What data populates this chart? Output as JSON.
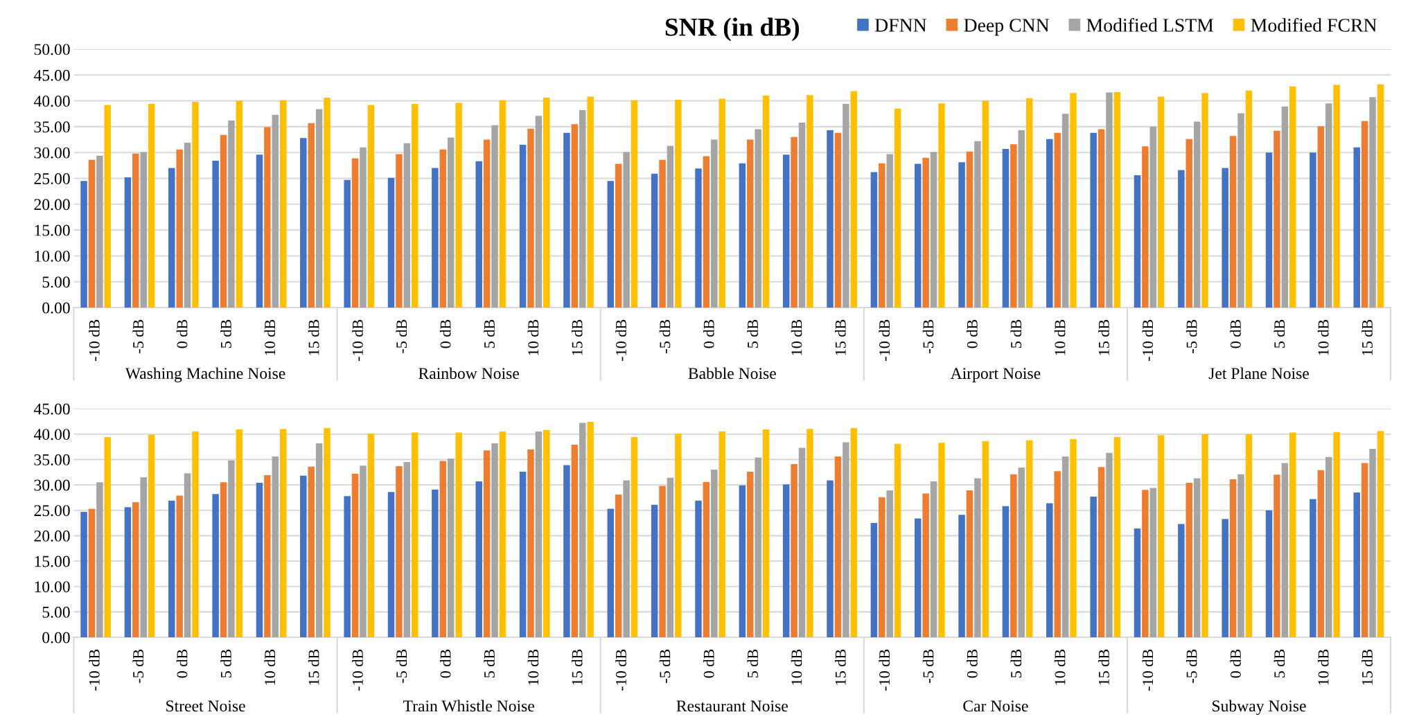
{
  "chart_data": [
    {
      "type": "bar",
      "title": "SNR (in dB)",
      "categories": [
        "-10 dB",
        "-5 dB",
        "0 dB",
        "5 dB",
        "10 dB",
        "15 dB",
        "-10 dB",
        "-5 dB",
        "0 dB",
        "5 dB",
        "10 dB",
        "15 dB",
        "-10 dB",
        "-5 dB",
        "0 dB",
        "5 dB",
        "10 dB",
        "15 dB",
        "-10 dB",
        "-5 dB",
        "0 dB",
        "5 dB",
        "10 dB",
        "15 dB",
        "-10 dB",
        "-5 dB",
        "0 dB",
        "5 dB",
        "10 dB",
        "15 dB"
      ],
      "annotations": [
        "Washing Machine Noise",
        "Rainbow Noise",
        "Babble Noise",
        "Airport Noise",
        "Jet Plane Noise"
      ],
      "series": [
        {
          "name": "DFNN",
          "color": "#4472c4",
          "values": [
            24.5,
            25.2,
            27.0,
            28.4,
            29.6,
            32.8,
            24.7,
            25.1,
            27.0,
            28.3,
            31.5,
            33.8,
            24.5,
            25.9,
            26.9,
            27.9,
            29.6,
            34.3,
            26.2,
            27.8,
            28.1,
            30.7,
            32.6,
            33.8,
            25.6,
            26.6,
            27.0,
            30.0,
            30.0,
            31.0
          ]
        },
        {
          "name": "Deep CNN",
          "color": "#ed7d31",
          "values": [
            28.6,
            29.8,
            30.6,
            33.4,
            34.9,
            35.7,
            28.9,
            29.7,
            30.6,
            32.5,
            34.6,
            35.5,
            27.8,
            28.6,
            29.3,
            32.5,
            33.0,
            33.8,
            27.9,
            29.0,
            30.2,
            31.6,
            33.8,
            34.5,
            31.2,
            32.6,
            33.2,
            34.2,
            35.1,
            36.1
          ]
        },
        {
          "name": "Modified LSTM",
          "color": "#a5a5a5",
          "values": [
            29.4,
            30.1,
            31.9,
            36.2,
            37.3,
            38.4,
            31.0,
            31.8,
            32.9,
            35.3,
            37.1,
            38.2,
            30.1,
            31.3,
            32.5,
            34.5,
            35.8,
            39.4,
            29.7,
            30.1,
            32.2,
            34.3,
            37.5,
            41.6,
            35.0,
            36.0,
            37.6,
            38.9,
            39.5,
            40.7
          ]
        },
        {
          "name": "Modified FCRN",
          "color": "#ffc000",
          "values": [
            39.2,
            39.4,
            39.8,
            40.0,
            40.1,
            40.6,
            39.2,
            39.4,
            39.6,
            40.1,
            40.6,
            40.8,
            40.1,
            40.2,
            40.4,
            41.0,
            41.1,
            41.9,
            38.5,
            39.5,
            40.0,
            40.5,
            41.5,
            41.7,
            40.8,
            41.5,
            42.0,
            42.8,
            43.1,
            43.2
          ]
        }
      ],
      "ylim": [
        0,
        50
      ],
      "yticks": [
        {
          "value": 0,
          "label": "0.00"
        },
        {
          "value": 5,
          "label": "5.00"
        },
        {
          "value": 10,
          "label": "10.00"
        },
        {
          "value": 15,
          "label": "15.00"
        },
        {
          "value": 20,
          "label": "20.00"
        },
        {
          "value": 25,
          "label": "25.00"
        },
        {
          "value": 30,
          "label": "30.00"
        },
        {
          "value": 35,
          "label": "35.00"
        },
        {
          "value": 40,
          "label": "40.00"
        },
        {
          "value": 45,
          "label": "45.00"
        },
        {
          "value": 50,
          "label": "50.00"
        }
      ],
      "grid": "y",
      "legend": "top right"
    },
    {
      "type": "bar",
      "categories": [
        "-10 dB",
        "-5 dB",
        "0 dB",
        "5 dB",
        "10 dB",
        "15 dB",
        "-10 dB",
        "-5 dB",
        "0 dB",
        "5 dB",
        "10 dB",
        "15 dB",
        "-10 dB",
        "-5 dB",
        "0 dB",
        "5 dB",
        "10 dB",
        "15 dB",
        "-10 dB",
        "-5 dB",
        "0 dB",
        "5 dB",
        "10 dB",
        "15 dB",
        "-10 dB",
        "-5 dB",
        "0 dB",
        "5 dB",
        "10 dB",
        "15 dB"
      ],
      "annotations": [
        "Street Noise",
        "Train Whistle Noise",
        "Restaurant Noise",
        "Car Noise",
        "Subway Noise"
      ],
      "series": [
        {
          "color": "#4472c4",
          "values": [
            24.7,
            25.6,
            26.9,
            28.2,
            30.4,
            31.8,
            27.8,
            28.6,
            29.1,
            30.7,
            32.6,
            33.9,
            25.3,
            26.1,
            26.9,
            29.9,
            30.1,
            30.9,
            22.5,
            23.4,
            24.1,
            25.8,
            26.4,
            27.7,
            21.4,
            22.3,
            23.3,
            25.0,
            27.2,
            28.5
          ]
        },
        {
          "color": "#ed7d31",
          "values": [
            25.3,
            26.6,
            27.9,
            30.5,
            31.9,
            33.6,
            32.2,
            33.7,
            34.7,
            36.8,
            37.0,
            37.9,
            28.1,
            29.8,
            30.6,
            32.6,
            34.1,
            35.6,
            27.6,
            28.3,
            28.9,
            32.1,
            32.7,
            33.5,
            29.0,
            30.4,
            31.1,
            32.0,
            32.9,
            34.3
          ]
        },
        {
          "color": "#a5a5a5",
          "values": [
            30.5,
            31.5,
            32.3,
            34.8,
            35.6,
            38.2,
            33.8,
            34.5,
            35.2,
            38.2,
            40.5,
            42.2,
            30.9,
            31.4,
            33.0,
            35.4,
            37.3,
            38.4,
            28.9,
            30.7,
            31.3,
            33.4,
            35.6,
            36.3,
            29.4,
            31.3,
            32.1,
            34.3,
            35.5,
            37.1
          ]
        },
        {
          "color": "#ffc000",
          "values": [
            39.4,
            39.9,
            40.5,
            40.9,
            41.0,
            41.2,
            40.1,
            40.3,
            40.3,
            40.5,
            40.8,
            42.4,
            39.4,
            40.1,
            40.5,
            40.9,
            41.0,
            41.2,
            38.1,
            38.3,
            38.6,
            38.8,
            39.0,
            39.4,
            39.8,
            40.0,
            40.0,
            40.3,
            40.4,
            40.6
          ]
        }
      ],
      "ylim": [
        0,
        45
      ],
      "yticks": [
        {
          "value": 0,
          "label": "0.00"
        },
        {
          "value": 5,
          "label": "5.00"
        },
        {
          "value": 10,
          "label": "10.00"
        },
        {
          "value": 15,
          "label": "15.00"
        },
        {
          "value": 20,
          "label": "20.00"
        },
        {
          "value": 25,
          "label": "25.00"
        },
        {
          "value": 30,
          "label": "30.00"
        },
        {
          "value": 35,
          "label": "35.00"
        },
        {
          "value": 40,
          "label": "40.00"
        },
        {
          "value": 45,
          "label": "45.00"
        }
      ],
      "grid": "y"
    }
  ]
}
